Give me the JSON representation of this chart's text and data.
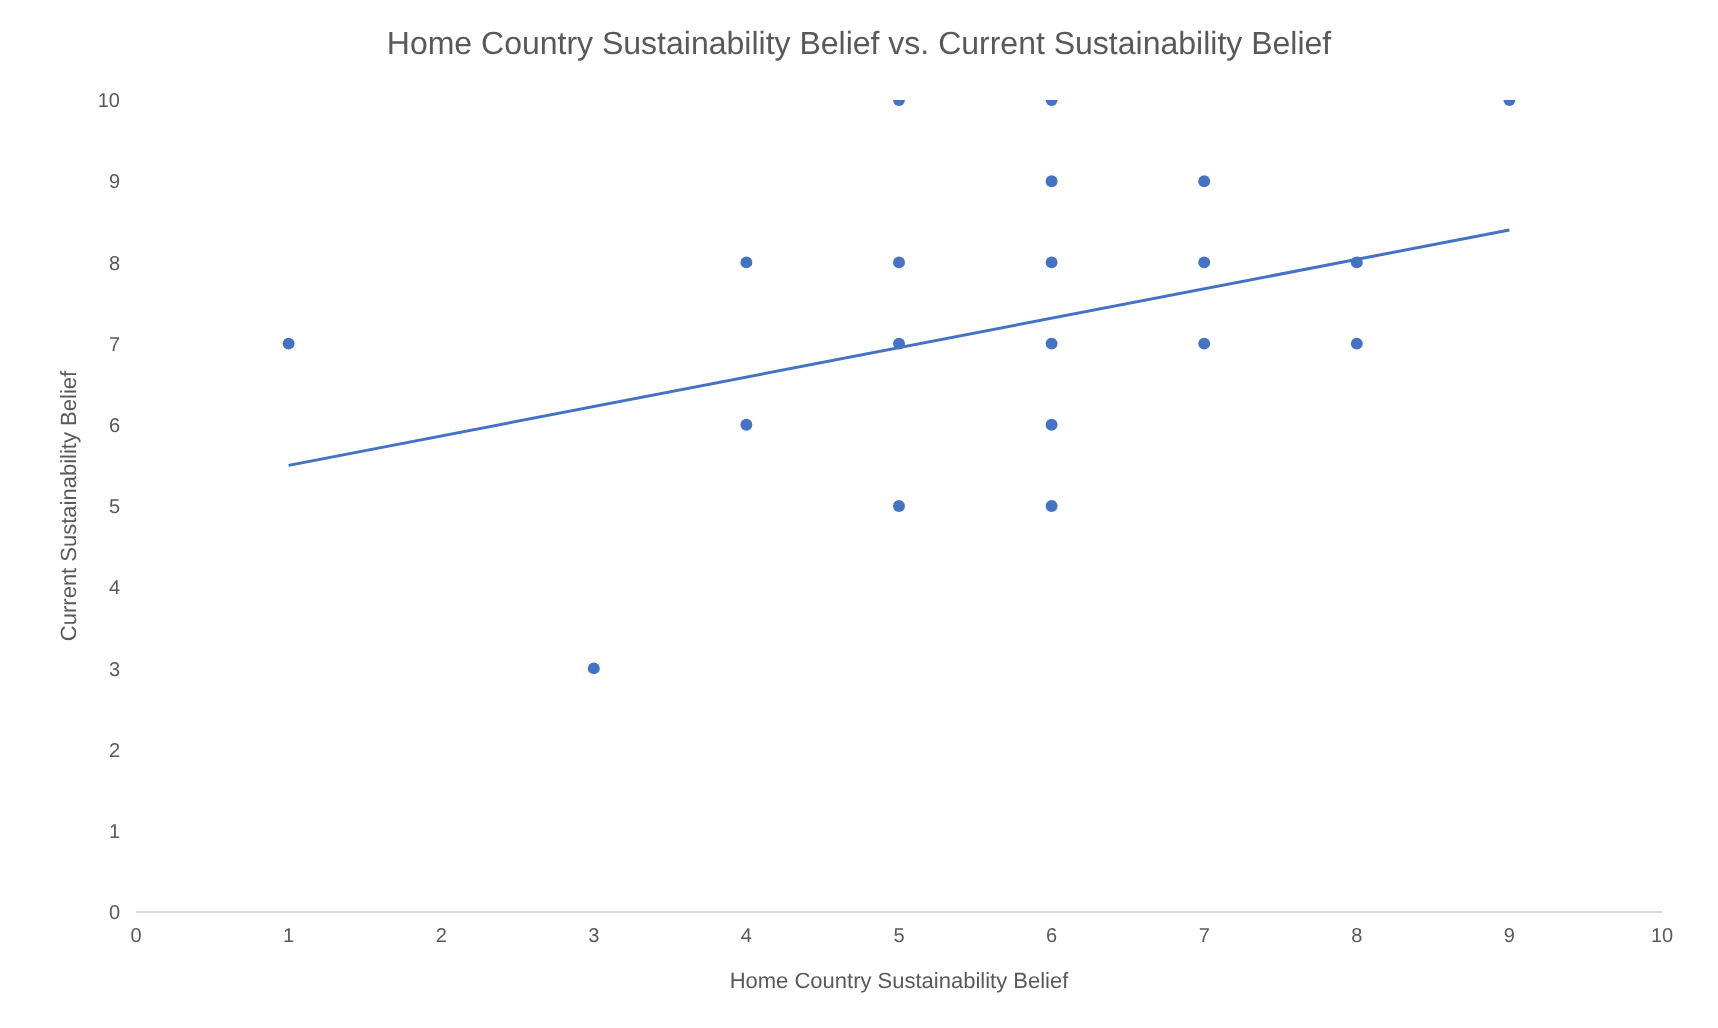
{
  "chart_data": {
    "type": "scatter",
    "title": "Home Country Sustainability Belief vs. Current Sustainability Belief",
    "xlabel": "Home Country Sustainability Belief",
    "ylabel": "Current Sustainability Belief",
    "x": [
      1,
      3,
      4,
      4,
      5,
      5,
      5,
      5,
      6,
      6,
      6,
      6,
      6,
      6,
      7,
      7,
      7,
      8,
      8,
      9
    ],
    "series": [
      {
        "color": "#4472c4",
        "values": [
          7,
          3,
          8,
          6,
          10,
          8,
          7,
          5,
          10,
          9,
          8,
          7,
          6,
          5,
          9,
          8,
          7,
          8,
          7,
          10
        ]
      },
      {
        "type": "line",
        "marker": "none",
        "color": "#4472c4",
        "x": [
          1,
          9
        ],
        "values": [
          5.5,
          8.4
        ]
      }
    ],
    "xlim": [
      0,
      10
    ],
    "xticks": [
      0,
      1,
      2,
      3,
      4,
      5,
      6,
      7,
      8,
      9,
      10
    ],
    "ylim": [
      0,
      10
    ],
    "yticks": [
      0,
      1,
      2,
      3,
      4,
      5,
      6,
      7,
      8,
      9,
      10
    ],
    "grid": false,
    "legend": false,
    "marker": "circle"
  }
}
